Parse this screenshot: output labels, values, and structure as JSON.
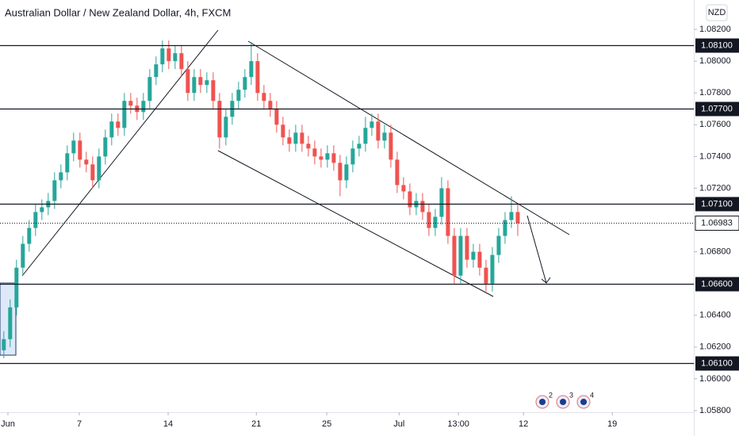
{
  "chart_data": {
    "type": "candlestick",
    "title": "Australian Dollar / New Zealand Dollar, 4h, FXCM",
    "currency": "NZD",
    "up_color": "#26a69a",
    "down_color": "#ef5350",
    "open": [
      1.0618,
      1.0625,
      1.0645,
      1.067,
      1.0685,
      1.0695,
      1.0705,
      1.0708,
      1.0712,
      1.0725,
      1.073,
      1.0742,
      1.075,
      1.0738,
      1.0735,
      1.0725,
      1.074,
      1.0752,
      1.0762,
      1.0758,
      1.0775,
      1.0772,
      1.0768,
      1.0775,
      1.079,
      1.0798,
      1.0808,
      1.08,
      1.0805,
      1.0795,
      1.078,
      1.079,
      1.0785,
      1.0788,
      1.0775,
      1.0752,
      1.0765,
      1.0775,
      1.0782,
      1.079,
      1.08,
      1.078,
      1.0775,
      1.077,
      1.076,
      1.0752,
      1.0748,
      1.0755,
      1.0748,
      1.0745,
      1.074,
      1.0738,
      1.0742,
      1.0736,
      1.0725,
      1.0735,
      1.0745,
      1.0748,
      1.0758,
      1.0762,
      1.075,
      1.0755,
      1.0738,
      1.0722,
      1.0718,
      1.0708,
      1.0712,
      1.0705,
      1.0695,
      1.0702,
      1.072,
      1.069,
      1.0665,
      1.069,
      1.0675,
      1.068,
      1.067,
      1.066,
      1.0678,
      1.069,
      1.07,
      1.0705
    ],
    "high": [
      1.063,
      1.065,
      1.0675,
      1.069,
      1.07,
      1.071,
      1.0713,
      1.0717,
      1.073,
      1.0735,
      1.0747,
      1.0755,
      1.0755,
      1.0743,
      1.074,
      1.0745,
      1.0757,
      1.0767,
      1.0767,
      1.078,
      1.078,
      1.0777,
      1.078,
      1.0795,
      1.0803,
      1.0813,
      1.0813,
      1.081,
      1.081,
      1.08,
      1.0795,
      1.0795,
      1.0793,
      1.0793,
      1.078,
      1.077,
      1.078,
      1.0787,
      1.0795,
      1.0812,
      1.0805,
      1.0785,
      1.078,
      1.0775,
      1.0765,
      1.0757,
      1.076,
      1.076,
      1.0753,
      1.075,
      1.0745,
      1.0747,
      1.0747,
      1.0741,
      1.074,
      1.075,
      1.0753,
      1.0765,
      1.0767,
      1.0767,
      1.076,
      1.076,
      1.0743,
      1.0727,
      1.0723,
      1.0717,
      1.0717,
      1.071,
      1.0707,
      1.0727,
      1.0725,
      1.0695,
      1.0695,
      1.0695,
      1.0685,
      1.0685,
      1.0675,
      1.0683,
      1.0695,
      1.0705,
      1.0715,
      1.071
    ],
    "low": [
      1.0613,
      1.062,
      1.064,
      1.0665,
      1.068,
      1.069,
      1.07,
      1.0703,
      1.0707,
      1.072,
      1.0725,
      1.0737,
      1.0733,
      1.073,
      1.072,
      1.072,
      1.0735,
      1.0747,
      1.0753,
      1.0753,
      1.0767,
      1.0763,
      1.0763,
      1.077,
      1.0785,
      1.0793,
      1.0795,
      1.0795,
      1.079,
      1.0775,
      1.0775,
      1.078,
      1.078,
      1.077,
      1.0745,
      1.0747,
      1.076,
      1.077,
      1.0777,
      1.0785,
      1.0775,
      1.077,
      1.0765,
      1.0755,
      1.0747,
      1.0743,
      1.0743,
      1.0743,
      1.074,
      1.0735,
      1.0733,
      1.0733,
      1.0731,
      1.0715,
      1.072,
      1.073,
      1.074,
      1.0743,
      1.0753,
      1.0745,
      1.0745,
      1.0733,
      1.0717,
      1.0713,
      1.0703,
      1.0703,
      1.07,
      1.069,
      1.069,
      1.0697,
      1.0685,
      1.066,
      1.066,
      1.067,
      1.067,
      1.0665,
      1.0655,
      1.0655,
      1.0673,
      1.0685,
      1.0695,
      1.069
    ],
    "close": [
      1.0625,
      1.0645,
      1.067,
      1.0685,
      1.0695,
      1.0705,
      1.0708,
      1.0712,
      1.0725,
      1.073,
      1.0742,
      1.075,
      1.0738,
      1.0735,
      1.0725,
      1.074,
      1.0752,
      1.0762,
      1.0758,
      1.0775,
      1.0772,
      1.0768,
      1.0775,
      1.079,
      1.0798,
      1.0808,
      1.08,
      1.0805,
      1.0795,
      1.078,
      1.079,
      1.0785,
      1.0788,
      1.0775,
      1.0752,
      1.0765,
      1.0775,
      1.0782,
      1.079,
      1.08,
      1.078,
      1.0775,
      1.077,
      1.076,
      1.0752,
      1.0748,
      1.0755,
      1.0748,
      1.0745,
      1.074,
      1.0738,
      1.0742,
      1.0736,
      1.0725,
      1.0735,
      1.0745,
      1.0748,
      1.0758,
      1.0762,
      1.075,
      1.0755,
      1.0738,
      1.0722,
      1.0718,
      1.0708,
      1.0712,
      1.0705,
      1.0695,
      1.0702,
      1.072,
      1.069,
      1.0665,
      1.069,
      1.0675,
      1.068,
      1.067,
      1.066,
      1.0678,
      1.069,
      1.07,
      1.0705,
      1.0698
    ],
    "xlim": [
      -0.6,
      108.75
    ],
    "xticks": [
      {
        "value": 0.65,
        "label": "Jun"
      },
      {
        "value": 11.9,
        "label": "7"
      },
      {
        "value": 25.9,
        "label": "14"
      },
      {
        "value": 39.8,
        "label": "21"
      },
      {
        "value": 50.9,
        "label": "25"
      },
      {
        "value": 62.3,
        "label": "Jul"
      },
      {
        "value": 71.65,
        "label": "13:00"
      },
      {
        "value": 81.9,
        "label": "12"
      },
      {
        "value": 95.9,
        "label": "19"
      }
    ],
    "ylim": [
      1.0579,
      1.08385
    ],
    "yticks": [
      {
        "value": 1.082,
        "label": "1.08200"
      },
      {
        "value": 1.08,
        "label": "1.08000"
      },
      {
        "value": 1.078,
        "label": "1.07800"
      },
      {
        "value": 1.076,
        "label": "1.07600"
      },
      {
        "value": 1.074,
        "label": "1.07400"
      },
      {
        "value": 1.072,
        "label": "1.07200"
      },
      {
        "value": 1.068,
        "label": "1.06800"
      },
      {
        "value": 1.064,
        "label": "1.06400"
      },
      {
        "value": 1.062,
        "label": "1.06200"
      },
      {
        "value": 1.06,
        "label": "1.06000"
      },
      {
        "value": 1.058,
        "label": "1.05800"
      }
    ],
    "levels": [
      {
        "value": 1.081,
        "label": "1.08100"
      },
      {
        "value": 1.077,
        "label": "1.07700"
      },
      {
        "value": 1.071,
        "label": "1.07100"
      },
      {
        "value": 1.066,
        "label": "1.06600"
      },
      {
        "value": 1.061,
        "label": "1.06100"
      }
    ],
    "last_price": {
      "value": 1.06983,
      "label": "1.06983"
    },
    "events": [
      "2",
      "3",
      "4"
    ]
  }
}
